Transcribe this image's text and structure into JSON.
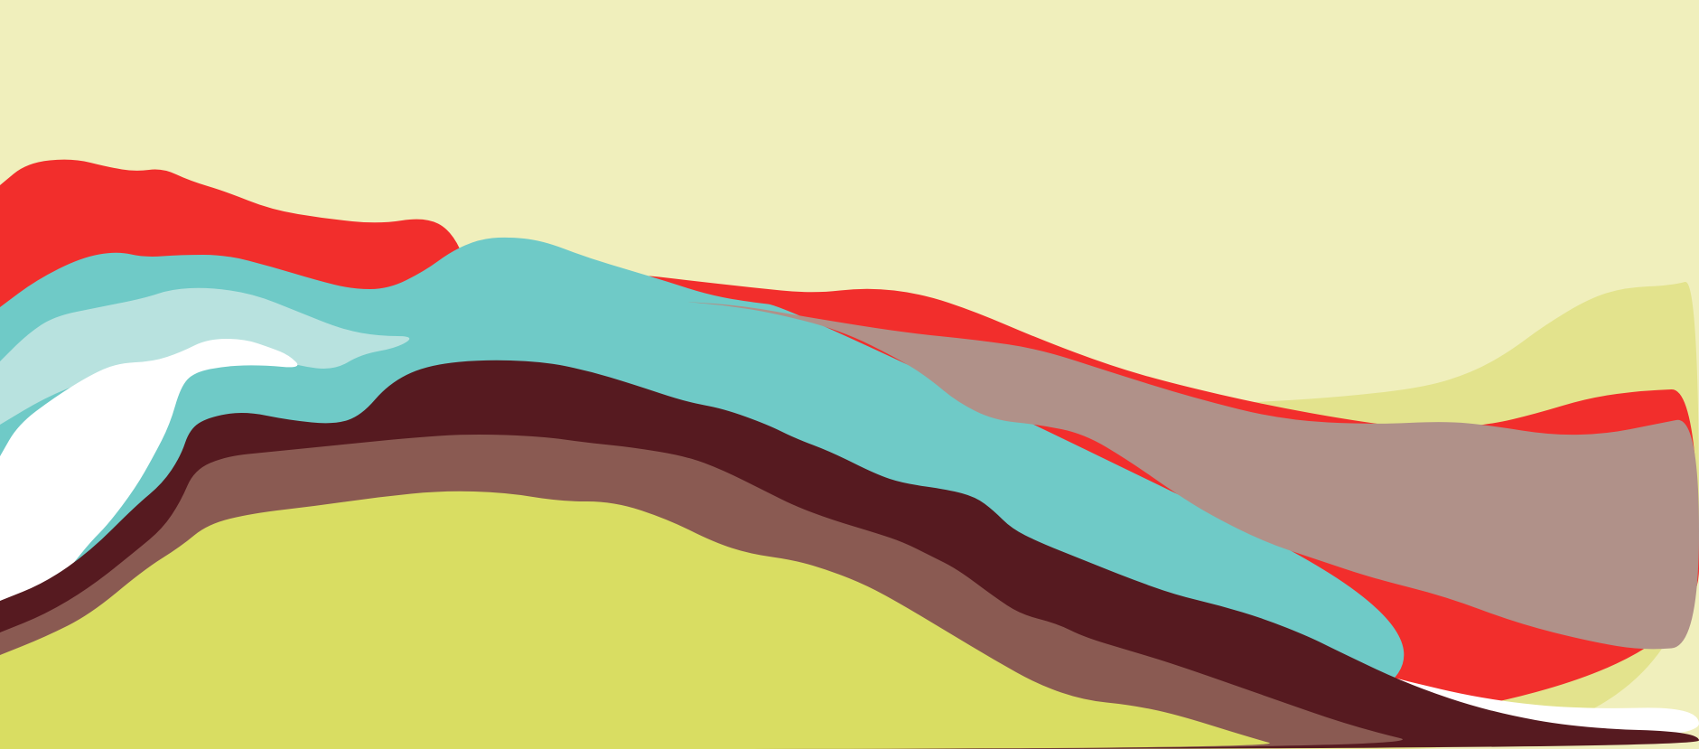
{
  "colors": {
    "background": "#f0efbc",
    "olive": "#e3e38d",
    "red": "#f22e2c",
    "teal": "#6fcac7",
    "light_teal": "#b8e2df",
    "white": "#ffffff",
    "mauve": "#b09189",
    "maroon": "#561a20",
    "brown": "#8a5a52",
    "yellow_green": "#d9dd62"
  }
}
